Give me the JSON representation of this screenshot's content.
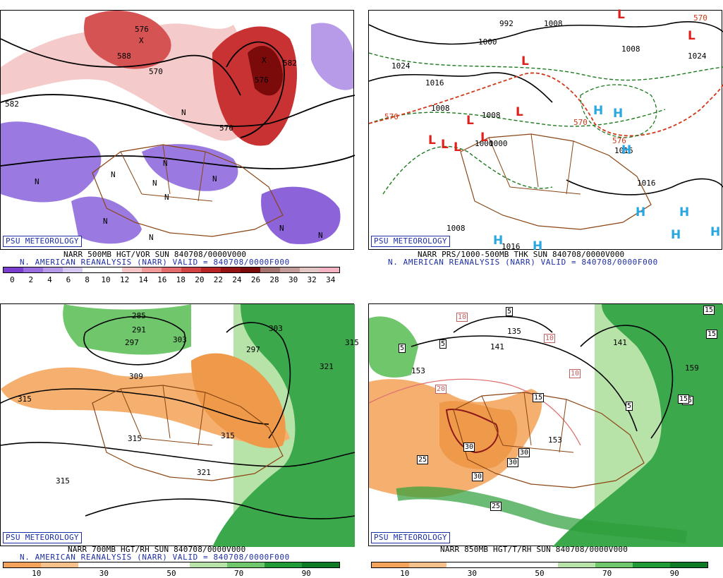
{
  "badge": "PSU METEOROLOGY",
  "panels": [
    {
      "line1": "NARR 500MB HGT/VOR SUN 840708/0000V000",
      "line2": "N. AMERICAN REANALYSIS (NARR) VALID = 840708/0000F000",
      "colorbar_colors": [
        "#7a3fd0",
        "#9a6ee0",
        "#b79ae8",
        "#d7c8f2",
        "#ffffff",
        "#ffffff",
        "#f6c5c5",
        "#f09a9a",
        "#e46c6c",
        "#d24444",
        "#b82424",
        "#951313",
        "#7b0b0b",
        "#a4736f",
        "#c39b98",
        "#e2c6c4",
        "#f3b3c2"
      ],
      "colorbar_ticks": [
        "0",
        "2",
        "4",
        "6",
        "8",
        "10",
        "12",
        "14",
        "16",
        "18",
        "20",
        "22",
        "24",
        "26",
        "28",
        "30",
        "32",
        "34"
      ],
      "contour_labels": [
        "576",
        "582",
        "588",
        "570",
        "576",
        "570",
        "582"
      ],
      "symbols": [
        "N",
        "N",
        "N",
        "N",
        "N",
        "N",
        "N",
        "N",
        "N",
        "N",
        "N",
        "X",
        "X"
      ]
    },
    {
      "line1": "NARR PRS/1000-500MB THK SUN 840708/0000V000",
      "line2": "N. AMERICAN REANALYSIS (NARR) VALID = 840708/0000F000",
      "contour_labels": [
        "992",
        "1000",
        "1008",
        "1024",
        "1016",
        "1008",
        "1008",
        "1000",
        "1008",
        "1016",
        "1016",
        "1008",
        "1016",
        "1024",
        "1000",
        "570",
        "570",
        "570",
        "576"
      ],
      "symbols": [
        "L",
        "L",
        "L",
        "L",
        "L",
        "L",
        "L",
        "L",
        "L",
        "H",
        "H",
        "H",
        "H",
        "H",
        "H",
        "H",
        "H",
        "H"
      ]
    },
    {
      "line1": "NARR 700MB HGT/RH SUN 840708/0000V000",
      "line2": "N. AMERICAN REANALYSIS (NARR) VALID = 840708/0000F000",
      "colorbar_colors": [
        "#f5a35a",
        "#f8c08a",
        "#ffffff",
        "#ffffff",
        "#ffffff",
        "#b7e3a8",
        "#6fc66b",
        "#1f9a36",
        "#0f7a26"
      ],
      "colorbar_ticks": [
        "10",
        "30",
        "50",
        "70",
        "90"
      ],
      "contour_labels": [
        "285",
        "291",
        "297",
        "303",
        "297",
        "303",
        "309",
        "315",
        "315",
        "315",
        "315",
        "321",
        "321",
        "315"
      ]
    },
    {
      "line1": "NARR 850MB HGT/T/RH SUN 840708/0000V000",
      "colorbar_colors": [
        "#f5a35a",
        "#f8c08a",
        "#ffffff",
        "#ffffff",
        "#ffffff",
        "#b7e3a8",
        "#6fc66b",
        "#1f9a36",
        "#0f7a26"
      ],
      "colorbar_ticks": [
        "10",
        "30",
        "50",
        "70",
        "90"
      ],
      "contour_labels": [
        "135",
        "141",
        "153",
        "153",
        "159",
        "141"
      ],
      "boxed_labels": [
        "5",
        "5",
        "5",
        "10",
        "10",
        "10",
        "15",
        "15",
        "15",
        "20",
        "25",
        "25",
        "30",
        "30",
        "30",
        "30",
        "5",
        "15",
        "15"
      ]
    }
  ]
}
